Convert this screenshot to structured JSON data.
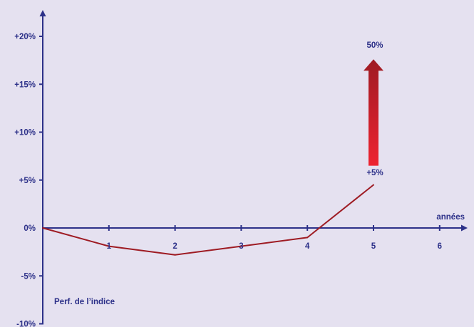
{
  "chart_data": {
    "type": "line",
    "title": "",
    "xlabel": "années",
    "ylabel": "Perf. de l’indice",
    "x_ticks": [
      1,
      2,
      3,
      4,
      5,
      6
    ],
    "x_tick_labels": [
      "1",
      "2",
      "3",
      "4",
      "5",
      "6"
    ],
    "y_ticks": [
      -10,
      -5,
      0,
      5,
      10,
      15,
      20
    ],
    "y_tick_labels": [
      "-10%",
      "-5%",
      "0%",
      "+5%",
      "+10%",
      "+15%",
      "+20%"
    ],
    "xlim": [
      0,
      6.4
    ],
    "ylim": [
      -10,
      22
    ],
    "grid": false,
    "series": [
      {
        "x": [
          0,
          1,
          2,
          3,
          4,
          5
        ],
        "y": [
          0,
          -1.9,
          -2.8,
          -1.9,
          -1.0,
          4.5
        ]
      }
    ],
    "annotations": [
      {
        "label": "+5%",
        "x": 5,
        "y": 5.5
      },
      {
        "label": "50%",
        "x": 5,
        "y": 18.8
      }
    ],
    "arrow": {
      "x": 5,
      "y_from": 6.5,
      "y_to": 17.6
    }
  },
  "colors": {
    "background": "#e5e1f0",
    "axis": "#2d3189",
    "series": "#9e1b23",
    "arrow_top": "#9e1b23",
    "arrow_bottom": "#ee2330"
  }
}
